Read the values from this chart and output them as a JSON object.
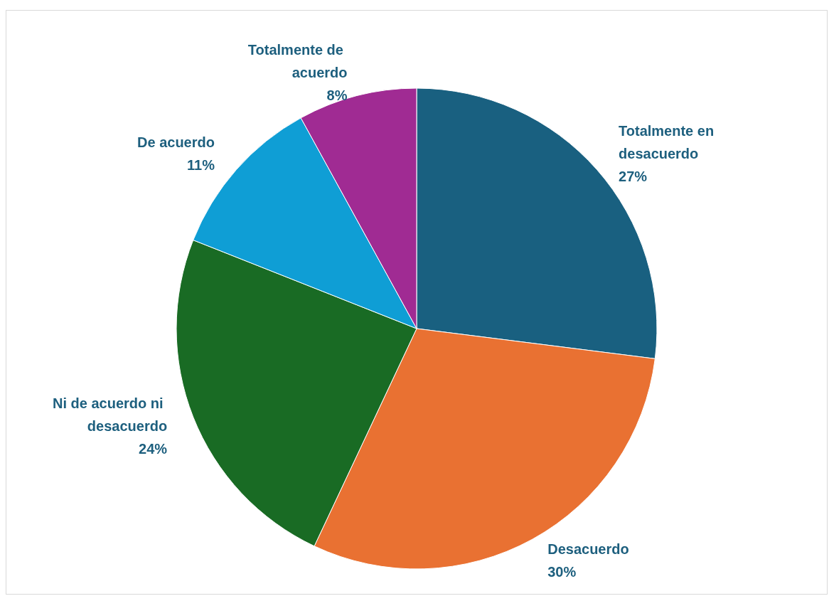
{
  "chart_data": {
    "type": "pie",
    "categories": [
      "Totalmente en desacuerdo",
      "Desacuerdo",
      "Ni de acuerdo ni desacuerdo",
      "De acuerdo",
      "Totalmente de acuerdo"
    ],
    "values": [
      27,
      30,
      24,
      11,
      8
    ],
    "colors": [
      "#196080",
      "#e97132",
      "#196b24",
      "#0f9ed5",
      "#a02b93"
    ],
    "value_labels": [
      "27%",
      "30%",
      "24%",
      "11%",
      "8%"
    ],
    "legend": false
  }
}
